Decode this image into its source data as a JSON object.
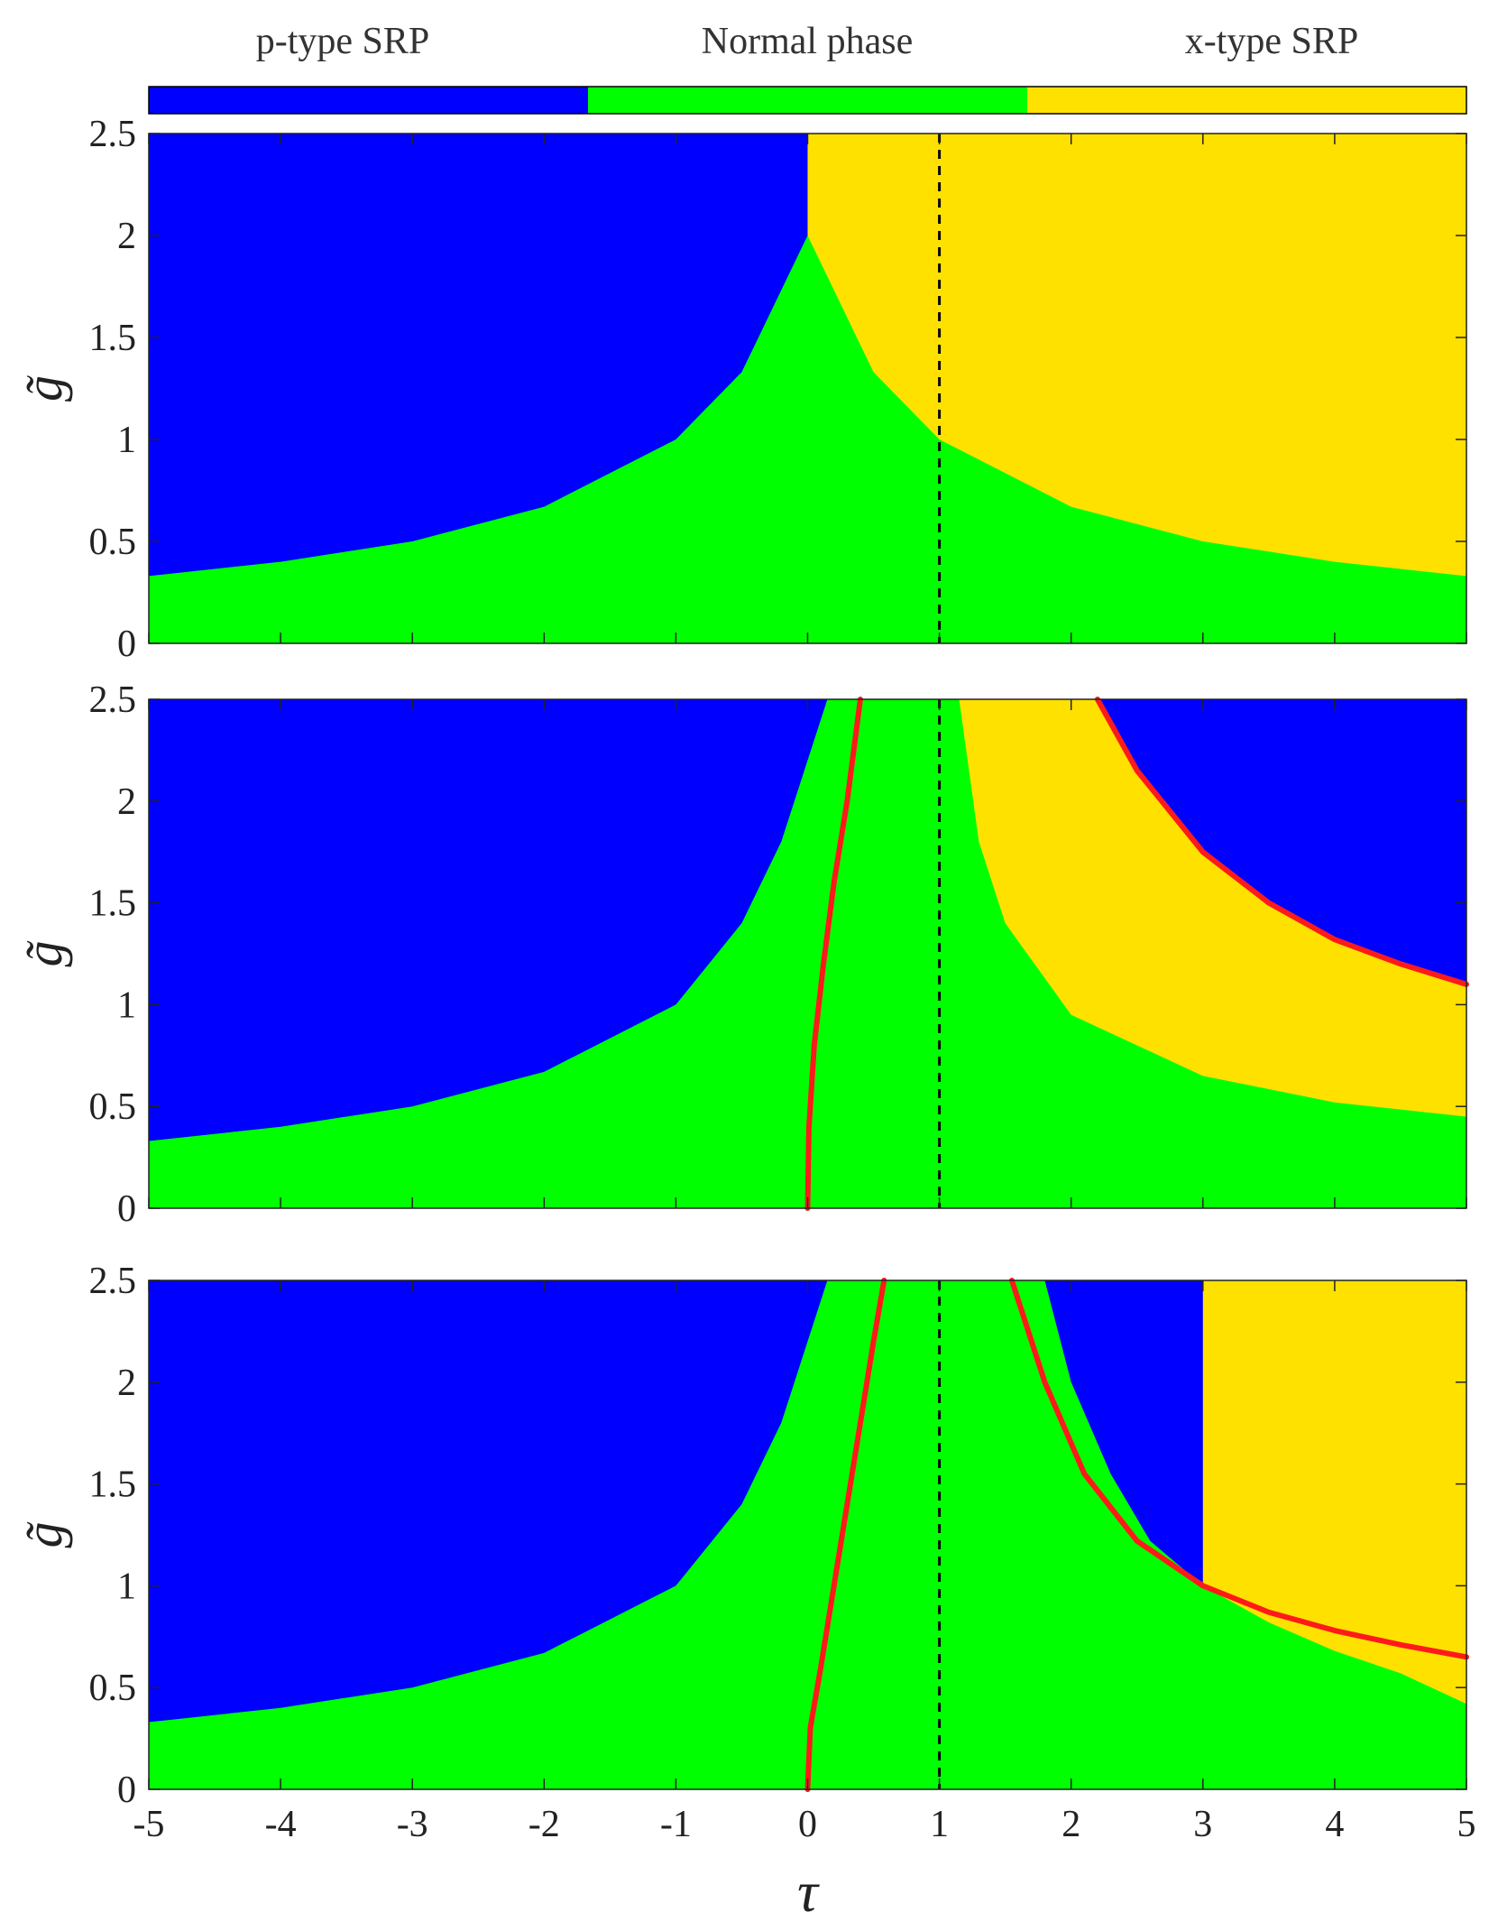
{
  "legend": {
    "items": [
      {
        "label": "p-type SRP",
        "color": "#0000ff"
      },
      {
        "label": "Normal phase",
        "color": "#00ff00"
      },
      {
        "label": "x-type SRP",
        "color": "#ffe100"
      }
    ]
  },
  "colors": {
    "p_type": "#0000ff",
    "normal": "#00ff00",
    "x_type": "#ffe100",
    "boundary_curve": "#ff1a1a",
    "reference_line": "#000000"
  },
  "chart_data": [
    {
      "type": "heatmap",
      "title": "",
      "xlabel": "τ",
      "ylabel": "g̃",
      "xlim": [
        -5,
        5
      ],
      "ylim": [
        0,
        2.5
      ],
      "x_ticks": [
        "-5",
        "-4",
        "-3",
        "-2",
        "-1",
        "0",
        "1",
        "2",
        "3",
        "4",
        "5"
      ],
      "y_ticks": [
        "0",
        "0.5",
        "1",
        "1.5",
        "2",
        "2.5"
      ],
      "reference_line_x": 1,
      "regions": [
        {
          "phase": "p-type SRP",
          "boundary": [
            [
              -5,
              0.33
            ],
            [
              -4,
              0.4
            ],
            [
              -3,
              0.5
            ],
            [
              -2,
              0.67
            ],
            [
              -1,
              1.0
            ],
            [
              -0.5,
              1.33
            ],
            [
              0,
              2.0
            ],
            [
              0,
              2.5
            ]
          ]
        },
        {
          "phase": "x-type SRP",
          "boundary": [
            [
              0,
              2.5
            ],
            [
              0,
              2.0
            ],
            [
              0.5,
              1.33
            ],
            [
              1,
              1.0
            ],
            [
              2,
              0.67
            ],
            [
              3,
              0.5
            ],
            [
              4,
              0.4
            ],
            [
              5,
              0.33
            ]
          ]
        }
      ],
      "red_curves": []
    },
    {
      "type": "heatmap",
      "title": "",
      "xlabel": "τ",
      "ylabel": "g̃",
      "xlim": [
        -5,
        5
      ],
      "ylim": [
        0,
        2.5
      ],
      "x_ticks": [
        "-5",
        "-4",
        "-3",
        "-2",
        "-1",
        "0",
        "1",
        "2",
        "3",
        "4",
        "5"
      ],
      "y_ticks": [
        "0",
        "0.5",
        "1",
        "1.5",
        "2",
        "2.5"
      ],
      "reference_line_x": 1,
      "regions": [
        {
          "phase": "p-type SRP",
          "boundary": [
            [
              -5,
              0.33
            ],
            [
              -4,
              0.4
            ],
            [
              -3,
              0.5
            ],
            [
              -2,
              0.67
            ],
            [
              -1,
              1.0
            ],
            [
              -0.5,
              1.4
            ],
            [
              -0.2,
              1.8
            ],
            [
              0,
              2.2
            ],
            [
              0.15,
              2.5
            ]
          ]
        },
        {
          "phase": "x-type SRP",
          "boundary": [
            [
              1.15,
              2.5
            ],
            [
              1.3,
              1.8
            ],
            [
              1.5,
              1.4
            ],
            [
              2,
              0.95
            ],
            [
              3,
              0.65
            ],
            [
              4,
              0.52
            ],
            [
              5,
              0.45
            ]
          ]
        },
        {
          "phase": "p-type SRP",
          "boundary": [
            [
              2.2,
              2.5
            ],
            [
              2.5,
              2.15
            ],
            [
              3,
              1.75
            ],
            [
              3.5,
              1.5
            ],
            [
              4,
              1.32
            ],
            [
              4.5,
              1.2
            ],
            [
              5,
              1.1
            ]
          ]
        }
      ],
      "red_curves": [
        [
          [
            0,
            0
          ],
          [
            0.01,
            0.4
          ],
          [
            0.05,
            0.8
          ],
          [
            0.12,
            1.2
          ],
          [
            0.2,
            1.6
          ],
          [
            0.3,
            2.0
          ],
          [
            0.4,
            2.5
          ]
        ],
        [
          [
            2.2,
            2.5
          ],
          [
            2.5,
            2.15
          ],
          [
            3,
            1.75
          ],
          [
            3.5,
            1.5
          ],
          [
            4,
            1.32
          ],
          [
            4.5,
            1.2
          ],
          [
            5,
            1.1
          ]
        ]
      ]
    },
    {
      "type": "heatmap",
      "title": "",
      "xlabel": "τ",
      "ylabel": "g̃",
      "xlim": [
        -5,
        5
      ],
      "ylim": [
        0,
        2.5
      ],
      "x_ticks": [
        "-5",
        "-4",
        "-3",
        "-2",
        "-1",
        "0",
        "1",
        "2",
        "3",
        "4",
        "5"
      ],
      "y_ticks": [
        "0",
        "0.5",
        "1",
        "1.5",
        "2",
        "2.5"
      ],
      "reference_line_x": 1,
      "regions": [
        {
          "phase": "p-type SRP",
          "boundary": [
            [
              -5,
              0.33
            ],
            [
              -4,
              0.4
            ],
            [
              -3,
              0.5
            ],
            [
              -2,
              0.67
            ],
            [
              -1,
              1.0
            ],
            [
              -0.5,
              1.4
            ],
            [
              -0.2,
              1.8
            ],
            [
              0,
              2.2
            ],
            [
              0.15,
              2.5
            ]
          ]
        },
        {
          "phase": "p-type SRP",
          "boundary": [
            [
              1.8,
              2.5
            ],
            [
              2.0,
              2.0
            ],
            [
              2.3,
              1.55
            ],
            [
              2.6,
              1.22
            ],
            [
              3.0,
              1.0
            ],
            [
              3.5,
              0.87
            ],
            [
              4,
              0.78
            ],
            [
              4.5,
              0.71
            ],
            [
              5,
              0.65
            ]
          ]
        },
        {
          "phase": "x-type SRP",
          "boundary": [
            [
              3.0,
              1.0
            ],
            [
              3.5,
              0.82
            ],
            [
              4,
              0.68
            ],
            [
              4.5,
              0.57
            ],
            [
              5,
              0.42
            ]
          ]
        }
      ],
      "red_curves": [
        [
          [
            0,
            0
          ],
          [
            0.02,
            0.3
          ],
          [
            0.1,
            0.6
          ],
          [
            0.2,
            1.0
          ],
          [
            0.3,
            1.4
          ],
          [
            0.4,
            1.8
          ],
          [
            0.5,
            2.2
          ],
          [
            0.58,
            2.5
          ]
        ],
        [
          [
            1.55,
            2.5
          ],
          [
            1.8,
            2.0
          ],
          [
            2.1,
            1.55
          ],
          [
            2.5,
            1.22
          ],
          [
            3.0,
            1.0
          ],
          [
            3.5,
            0.87
          ],
          [
            4,
            0.78
          ],
          [
            4.5,
            0.71
          ],
          [
            5,
            0.65
          ]
        ]
      ]
    }
  ]
}
